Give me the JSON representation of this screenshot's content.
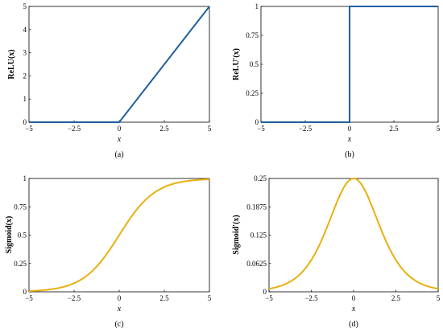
{
  "chart_data": [
    {
      "type": "line",
      "panel": "(a)",
      "xlabel": "x",
      "ylabel": "ReLU(x)",
      "xlim": [
        -5,
        5
      ],
      "ylim": [
        0,
        5
      ],
      "xticks": [
        "−5",
        "−2.5",
        "0",
        "2.5",
        "5"
      ],
      "yticks": [
        "0",
        "1",
        "2",
        "3",
        "4",
        "5"
      ],
      "color": "#1f5fa0",
      "series": [
        {
          "function": "relu",
          "x": [
            -5,
            0,
            5
          ],
          "y": [
            0,
            0,
            5
          ]
        }
      ]
    },
    {
      "type": "line",
      "panel": "(b)",
      "xlabel": "x",
      "ylabel": "ReLU′(x)",
      "xlim": [
        -5,
        5
      ],
      "ylim": [
        0,
        1
      ],
      "xticks": [
        "−5",
        "−2.5",
        "0",
        "2.5",
        "5"
      ],
      "yticks": [
        "0",
        "0.25",
        "0.5",
        "0.75",
        "1"
      ],
      "color": "#1f5fa0",
      "series": [
        {
          "function": "step",
          "x": [
            -5,
            0,
            0,
            5
          ],
          "y": [
            0,
            0,
            1,
            1
          ]
        }
      ]
    },
    {
      "type": "line",
      "panel": "(c)",
      "xlabel": "x",
      "ylabel": "Sigmoid(x)",
      "xlim": [
        -5,
        5
      ],
      "ylim": [
        0,
        1
      ],
      "xticks": [
        "−5",
        "−2.5",
        "0",
        "2.5",
        "5"
      ],
      "yticks": [
        "0",
        "0.25",
        "0.5",
        "0.75",
        "1"
      ],
      "color": "#e8b00f",
      "series": [
        {
          "function": "sigmoid",
          "x": [
            -5,
            -2.5,
            0,
            2.5,
            5
          ],
          "y": [
            0.0067,
            0.0759,
            0.5,
            0.9241,
            0.9933
          ]
        }
      ]
    },
    {
      "type": "line",
      "panel": "(d)",
      "xlabel": "x",
      "ylabel": "Sigmoid′(x)",
      "xlim": [
        -5,
        5
      ],
      "ylim": [
        0,
        0.25
      ],
      "xticks": [
        "−5",
        "−2.5",
        "0",
        "2.5",
        "5"
      ],
      "yticks": [
        "0",
        "0.0625",
        "0.125",
        "0.1875",
        "0.25"
      ],
      "color": "#e8b00f",
      "series": [
        {
          "function": "sigmoid_derivative",
          "x": [
            -5,
            -2.5,
            0,
            2.5,
            5
          ],
          "y": [
            0.0066,
            0.0701,
            0.25,
            0.0701,
            0.0066
          ]
        }
      ]
    }
  ]
}
